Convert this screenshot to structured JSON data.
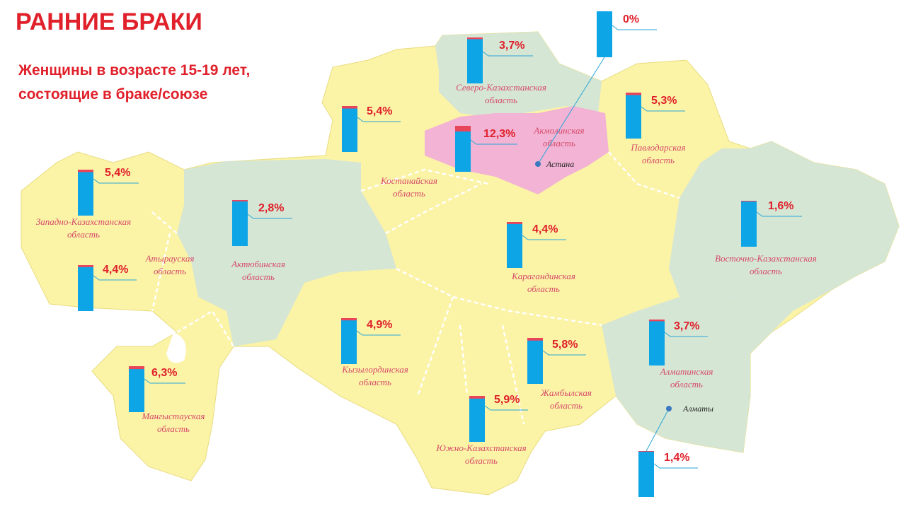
{
  "title": "РАННИЕ БРАКИ",
  "subtitle": [
    "Женщины в возрасте 15-19 лет,",
    "состоящие в браке/союзе"
  ],
  "regions": [
    {
      "name": [
        "Западно-Казахстанская",
        "область"
      ],
      "value": 5.4,
      "value_label": "5,4%"
    },
    {
      "name": [
        "Атырауская",
        "область"
      ],
      "value": 4.4,
      "value_label": "4,4%"
    },
    {
      "name": [
        "Мангыстауская",
        "область"
      ],
      "value": 6.3,
      "value_label": "6,3%"
    },
    {
      "name": [
        "Актюбинская",
        "область"
      ],
      "value": 2.8,
      "value_label": "2,8%"
    },
    {
      "name": [
        "Костанайская",
        "область"
      ],
      "value": 5.4,
      "value_label": "5,4%"
    },
    {
      "name": [
        "Северо-Казахстанская",
        "область"
      ],
      "value": 3.7,
      "value_label": "3,7%"
    },
    {
      "name": [
        "Акмолинская",
        "область"
      ],
      "value": 12.3,
      "value_label": "12,3%"
    },
    {
      "name": [
        "Павлодарская",
        "область"
      ],
      "value": 5.3,
      "value_label": "5,3%"
    },
    {
      "name": [
        "Карагандинская",
        "область"
      ],
      "value": 4.4,
      "value_label": "4,4%"
    },
    {
      "name": [
        "Восточно-Казахстанская",
        "область"
      ],
      "value": 1.6,
      "value_label": "1,6%"
    },
    {
      "name": [
        "Кызылординская",
        "область"
      ],
      "value": 4.9,
      "value_label": "4,9%"
    },
    {
      "name": [
        "Жамбылская",
        "область"
      ],
      "value": 5.8,
      "value_label": "5,8%"
    },
    {
      "name": [
        "Южно-Казахстанская",
        "область"
      ],
      "value": 5.9,
      "value_label": "5,9%"
    },
    {
      "name": [
        "Алматинская",
        "область"
      ],
      "value": 3.7,
      "value_label": "3,7%"
    }
  ],
  "cities": [
    {
      "name": "Астана",
      "value": 0,
      "value_label": "0%"
    },
    {
      "name": "Алматы",
      "value": 1.4,
      "value_label": "1,4%"
    }
  ]
}
